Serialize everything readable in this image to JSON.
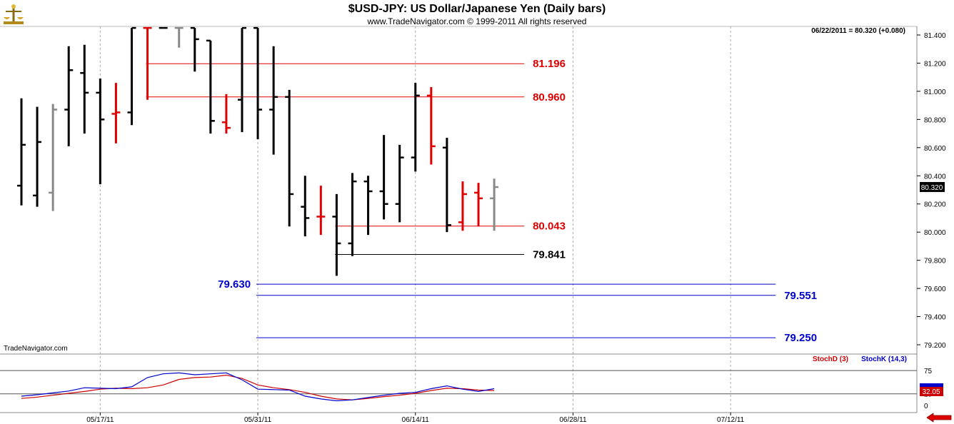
{
  "header": {
    "title": "$USD-JPY:  US Dollar/Japanese Yen  (Daily bars)",
    "subtitle": "www.TradeNavigator.com © 1999-2011 All rights reserved",
    "last_info": "06/22/2011 = 80.320 (+0.080)",
    "watermark": "TradeNavigator.com",
    "logo_icon": "scales-logo-icon",
    "back_arrow_icon": "red-left-arrow-icon"
  },
  "colors": {
    "up_black": "#000000",
    "red": "#e00000",
    "gray": "#888888",
    "blue_level": "#0000cc",
    "stoch_d": "#cc0000",
    "stoch_k": "#0000cc"
  },
  "chart_data": [
    {
      "type": "ohlc",
      "title": "$USD-JPY:  US Dollar/Japanese Yen  (Daily bars)",
      "x_tick_labels": [
        "05/17/11",
        "05/31/11",
        "06/14/11",
        "06/28/11",
        "07/12/11"
      ],
      "y_tick_labels": [
        "81.400",
        "81.200",
        "81.000",
        "80.800",
        "80.600",
        "80.400",
        "80.200",
        "80.000",
        "79.800",
        "79.600",
        "79.400",
        "79.200"
      ],
      "ylim": [
        79.1,
        81.45
      ],
      "last_price_label": "80.320",
      "bars": [
        {
          "date": "05/10",
          "o": 80.33,
          "h": 80.95,
          "l": 80.19,
          "c": 80.62,
          "color": "black"
        },
        {
          "date": "05/11",
          "o": 80.26,
          "h": 80.89,
          "l": 80.18,
          "c": 80.64,
          "color": "black"
        },
        {
          "date": "05/12",
          "o": 80.28,
          "h": 80.91,
          "l": 80.15,
          "c": 80.87,
          "color": "gray"
        },
        {
          "date": "05/13",
          "o": 80.87,
          "h": 81.32,
          "l": 80.61,
          "c": 81.15,
          "color": "black"
        },
        {
          "date": "05/16",
          "o": 81.13,
          "h": 81.33,
          "l": 80.7,
          "c": 80.99,
          "color": "black"
        },
        {
          "date": "05/17",
          "o": 80.99,
          "h": 81.09,
          "l": 80.34,
          "c": 80.8,
          "color": "black"
        },
        {
          "date": "05/18",
          "o": 80.84,
          "h": 81.06,
          "l": 80.63,
          "c": 80.85,
          "color": "red"
        },
        {
          "date": "05/19",
          "o": 80.85,
          "h": 81.45,
          "l": 80.76,
          "c": 81.45,
          "color": "black"
        },
        {
          "date": "05/20",
          "o": 81.45,
          "h": 81.45,
          "l": 80.94,
          "c": 81.45,
          "color": "red"
        },
        {
          "date": "05/23",
          "o": 81.45,
          "h": 81.45,
          "l": 81.45,
          "c": 81.45,
          "color": "black"
        },
        {
          "date": "05/24",
          "o": 81.45,
          "h": 81.45,
          "l": 81.31,
          "c": 81.45,
          "color": "gray"
        },
        {
          "date": "05/25",
          "o": 81.45,
          "h": 81.45,
          "l": 81.14,
          "c": 81.37,
          "color": "black"
        },
        {
          "date": "05/26",
          "o": 81.36,
          "h": 81.36,
          "l": 80.7,
          "c": 80.79,
          "color": "black"
        },
        {
          "date": "05/27",
          "o": 80.78,
          "h": 80.98,
          "l": 80.7,
          "c": 80.74,
          "color": "red"
        },
        {
          "date": "05/30",
          "o": 80.94,
          "h": 81.45,
          "l": 80.71,
          "c": 81.45,
          "color": "black"
        },
        {
          "date": "05/31",
          "o": 81.45,
          "h": 81.45,
          "l": 80.66,
          "c": 80.87,
          "color": "black"
        },
        {
          "date": "06/01",
          "o": 80.87,
          "h": 81.32,
          "l": 80.55,
          "c": 80.96,
          "color": "black"
        },
        {
          "date": "06/02",
          "o": 80.96,
          "h": 81.01,
          "l": 80.04,
          "c": 80.27,
          "color": "black"
        },
        {
          "date": "06/03",
          "o": 80.18,
          "h": 80.4,
          "l": 79.97,
          "c": 80.1,
          "color": "black"
        },
        {
          "date": "06/06",
          "o": 80.11,
          "h": 80.33,
          "l": 79.98,
          "c": 80.11,
          "color": "red"
        },
        {
          "date": "06/07",
          "o": 80.11,
          "h": 80.27,
          "l": 79.69,
          "c": 79.92,
          "color": "black"
        },
        {
          "date": "06/08",
          "o": 79.92,
          "h": 80.42,
          "l": 79.83,
          "c": 80.36,
          "color": "black"
        },
        {
          "date": "06/09",
          "o": 80.36,
          "h": 80.4,
          "l": 79.98,
          "c": 80.29,
          "color": "black"
        },
        {
          "date": "06/10",
          "o": 80.29,
          "h": 80.69,
          "l": 80.09,
          "c": 80.2,
          "color": "black"
        },
        {
          "date": "06/13",
          "o": 80.2,
          "h": 80.62,
          "l": 80.07,
          "c": 80.53,
          "color": "black"
        },
        {
          "date": "06/14",
          "o": 80.53,
          "h": 81.06,
          "l": 80.43,
          "c": 80.97,
          "color": "black"
        },
        {
          "date": "06/15",
          "o": 80.97,
          "h": 81.03,
          "l": 80.48,
          "c": 80.61,
          "color": "red"
        },
        {
          "date": "06/16",
          "o": 80.6,
          "h": 80.67,
          "l": 80.0,
          "c": 80.05,
          "color": "black"
        },
        {
          "date": "06/17",
          "o": 80.07,
          "h": 80.36,
          "l": 80.01,
          "c": 80.27,
          "color": "red"
        },
        {
          "date": "06/20",
          "o": 80.28,
          "h": 80.35,
          "l": 80.04,
          "c": 80.24,
          "color": "red"
        },
        {
          "date": "06/21",
          "o": 80.24,
          "h": 80.38,
          "l": 80.01,
          "c": 80.32,
          "color": "gray"
        }
      ],
      "levels": [
        {
          "value": "81.196",
          "y": 81.196,
          "color": "red",
          "from": "05/20",
          "to": "06/21",
          "label_side": "right"
        },
        {
          "value": "80.960",
          "y": 80.96,
          "color": "red",
          "from": "05/20",
          "to": "06/21",
          "label_side": "right"
        },
        {
          "value": "80.043",
          "y": 80.043,
          "color": "red",
          "from": "06/07",
          "to": "06/21",
          "label_side": "right"
        },
        {
          "value": "79.841",
          "y": 79.841,
          "color": "black",
          "from": "06/07",
          "to": "06/21",
          "label_side": "right"
        },
        {
          "value": "79.630",
          "y": 79.63,
          "color": "blue",
          "from": "05/31",
          "to": "07/16",
          "label_side": "left"
        },
        {
          "value": "79.551",
          "y": 79.551,
          "color": "blue",
          "from": "05/31",
          "to": "07/16",
          "label_side": "right"
        },
        {
          "value": "79.250",
          "y": 79.25,
          "color": "blue",
          "from": "05/31",
          "to": "07/16",
          "label_side": "right"
        }
      ]
    },
    {
      "type": "line",
      "ylim": [
        0,
        100
      ],
      "y_tick_labels": [
        "75",
        "25",
        "0"
      ],
      "last_value_label": "32.05",
      "legend": [
        {
          "name": "StochD (3)",
          "color": "red"
        },
        {
          "name": "StochK (14,3)",
          "color": "blue"
        }
      ],
      "reference_lines": [
        75,
        25
      ],
      "series": [
        {
          "name": "StochD (3)",
          "values": [
            15,
            18,
            22,
            26,
            30,
            35,
            37,
            36,
            38,
            44,
            56,
            60,
            61,
            65,
            58,
            44,
            38,
            34,
            28,
            20,
            14,
            12,
            15,
            19,
            22,
            26,
            32,
            37,
            36,
            33,
            32
          ]
        },
        {
          "name": "StochK (14,3)",
          "values": [
            20,
            23,
            27,
            31,
            38,
            37,
            36,
            40,
            60,
            68,
            70,
            66,
            68,
            70,
            55,
            35,
            34,
            33,
            20,
            14,
            10,
            12,
            17,
            22,
            26,
            28,
            36,
            42,
            35,
            30,
            36
          ]
        }
      ]
    }
  ]
}
